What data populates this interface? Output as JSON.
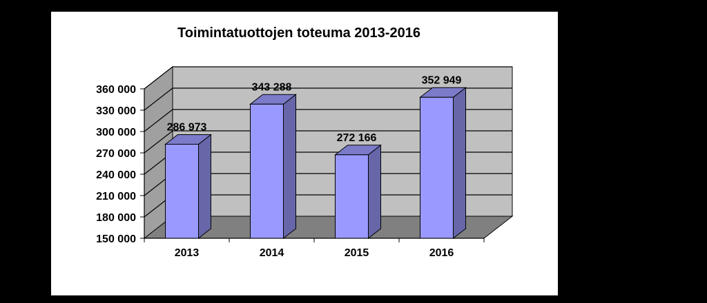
{
  "chart_data": {
    "type": "bar",
    "title": "Toimintatuottojen toteuma 2013-2016",
    "categories": [
      "2013",
      "2014",
      "2015",
      "2016"
    ],
    "values": [
      286973,
      343288,
      272166,
      352949
    ],
    "data_labels": [
      "286 973",
      "343 288",
      "272 166",
      "352 949"
    ],
    "ylim": [
      150000,
      360000
    ],
    "yticks": [
      "150 000",
      "180 000",
      "210 000",
      "240 000",
      "270 000",
      "300 000",
      "330 000",
      "360 000"
    ],
    "ytick_values": [
      150000,
      180000,
      210000,
      240000,
      270000,
      300000,
      330000,
      360000
    ],
    "xlabel": "",
    "ylabel": "",
    "grid": true,
    "legend": "none",
    "style": "3d-column",
    "colors": {
      "bar_front": "#9999FF",
      "bar_side": "#6666A8",
      "bar_top": "#7B7BC9",
      "wall": "#C0C0C0",
      "side_wall": "#A0A0A0",
      "floor": "#808080",
      "background": "#FFFFFF",
      "page": "#000000"
    }
  }
}
